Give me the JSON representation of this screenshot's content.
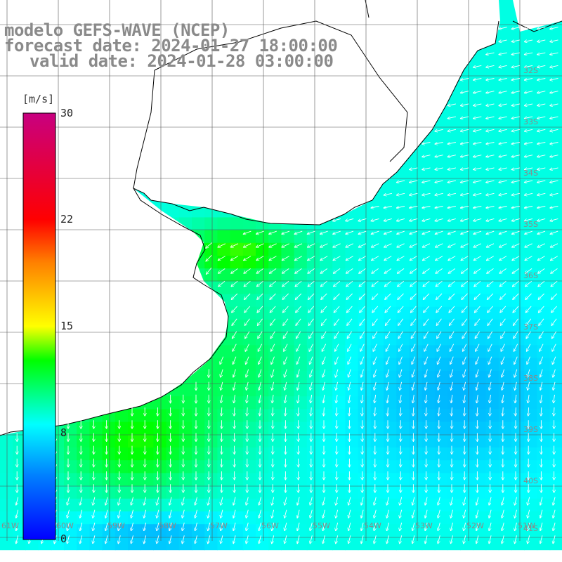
{
  "header": {
    "model": "modelo GEFS-WAVE (NCEP)",
    "forecast": "forecast date: 2024-01-27 18:00:00",
    "valid": "valid date: 2024-01-28 03:00:00"
  },
  "colorbar": {
    "unit": "[m/s]",
    "min": 0,
    "max": 30,
    "ticks": [
      "30",
      "22",
      "15",
      "8",
      "0"
    ],
    "colors": [
      "#0000ff",
      "#0080ff",
      "#00ffff",
      "#00ff00",
      "#ffff00",
      "#ff8000",
      "#ff0000",
      "#c80080"
    ]
  },
  "grid": {
    "lat_labels": [
      "32S",
      "33S",
      "34S",
      "35S",
      "36S",
      "37S",
      "38S",
      "39S",
      "40S",
      "41S"
    ],
    "lon_labels": [
      "61W",
      "60W",
      "59W",
      "58W",
      "57W",
      "56W",
      "55W",
      "54W",
      "53W",
      "52W",
      "51W"
    ]
  },
  "field": {
    "quantity": "wind speed",
    "land_color": "#ffffff",
    "coast_color": "#000000"
  }
}
